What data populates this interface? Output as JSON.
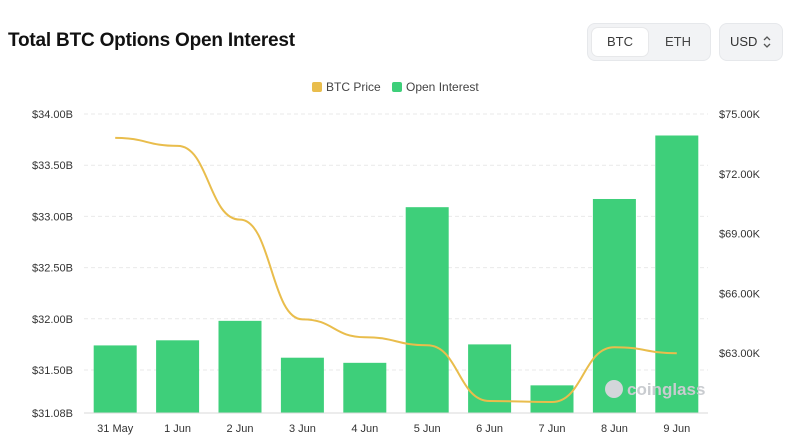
{
  "header": {
    "title": "Total BTC Options Open Interest",
    "asset_options": [
      "BTC",
      "ETH"
    ],
    "selected_asset": "BTC",
    "currency": "USD"
  },
  "watermark": "coinglass",
  "colors": {
    "bar": "#3ecf7a",
    "price_line": "#e9bd4c",
    "grid": "#e9e9e9"
  },
  "chart_data": {
    "type": "bar",
    "categories": [
      "31 May",
      "1 Jun",
      "2 Jun",
      "3 Jun",
      "4 Jun",
      "5 Jun",
      "6 Jun",
      "7 Jun",
      "8 Jun",
      "9 Jun"
    ],
    "series": [
      {
        "name": "Open Interest",
        "type": "bar",
        "axis": "left",
        "values": [
          31.74,
          31.79,
          31.98,
          31.62,
          31.57,
          33.09,
          31.75,
          31.35,
          33.17,
          33.79
        ]
      },
      {
        "name": "BTC Price",
        "type": "line",
        "axis": "right",
        "values": [
          73800,
          73400,
          69700,
          64700,
          63800,
          63400,
          60600,
          60550,
          63300,
          63000
        ]
      }
    ],
    "left_axis": {
      "ticks": [
        "$34.00B",
        "$33.50B",
        "$33.00B",
        "$32.50B",
        "$32.00B",
        "$31.50B",
        "$31.08B"
      ],
      "tick_values": [
        34.0,
        33.5,
        33.0,
        32.5,
        32.0,
        31.5,
        31.08
      ],
      "range": [
        31.08,
        34.0
      ]
    },
    "right_axis": {
      "ticks": [
        "$75.00K",
        "$72.00K",
        "$69.00K",
        "$66.00K",
        "$63.00K"
      ],
      "tick_values": [
        75000,
        72000,
        69000,
        66000,
        63000
      ],
      "range": [
        60000,
        75000
      ]
    },
    "legend": [
      "BTC Price",
      "Open Interest"
    ],
    "legend_position": "top-center",
    "grid": true
  }
}
